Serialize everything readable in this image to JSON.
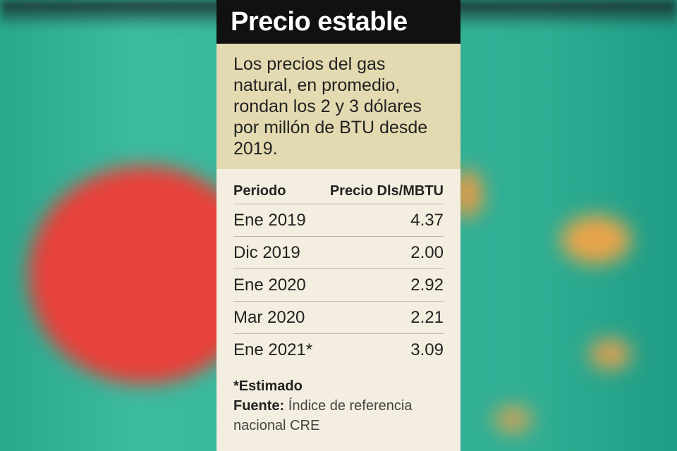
{
  "title": "Precio estable",
  "intro": "Los precios del gas natural, en promedio, rondan los 2 y 3 dólares por millón de BTU desde 2019.",
  "table": {
    "headers": [
      "Periodo",
      "Precio Dls/MBTU"
    ],
    "rows": [
      {
        "period": "Ene 2019",
        "price": "4.37"
      },
      {
        "period": "Dic 2019",
        "price": "2.00"
      },
      {
        "period": "Ene 2020",
        "price": "2.92"
      },
      {
        "period": "Mar 2020",
        "price": "2.21"
      },
      {
        "period": "Ene 2021*",
        "price": "3.09"
      }
    ]
  },
  "footnote": "*Estimado",
  "source_label": "Fuente:",
  "source_text": "Índice de referencia nacional CRE",
  "colors": {
    "header_bg": "#111111",
    "intro_bg": "#e3dab1",
    "table_bg": "#f3eedf",
    "background": "#2aa88e"
  }
}
